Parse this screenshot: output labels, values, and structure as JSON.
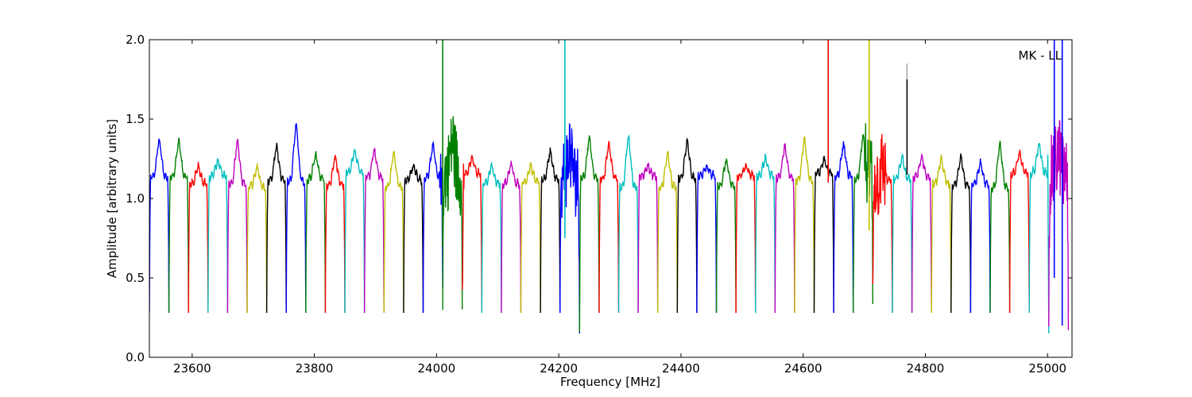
{
  "chart_data": {
    "type": "line",
    "xlabel": "Frequency [MHz]",
    "ylabel": "Amplitude [arbitrary units]",
    "annotation": "MK - LL",
    "xlim": [
      23530,
      25040
    ],
    "ylim": [
      0.0,
      2.0
    ],
    "xticks": [
      23600,
      23800,
      24000,
      24200,
      24400,
      24600,
      24800,
      25000
    ],
    "xtick_labels": [
      "23600",
      "23800",
      "24000",
      "24200",
      "24400",
      "24600",
      "24800",
      "25000"
    ],
    "yticks": [
      0.0,
      0.5,
      1.0,
      1.5,
      2.0
    ],
    "ytick_labels": [
      "0.0",
      "0.5",
      "1.0",
      "1.5",
      "2.0"
    ],
    "grid": false,
    "legend": "none",
    "colors": [
      "#0000ff",
      "#008000",
      "#ff0000",
      "#00bfbf",
      "#bf00bf",
      "#bfbf00",
      "#000000"
    ],
    "channel_width_mhz": 32,
    "channel_start_mhz": 23530,
    "channel_peaks": [
      1.36,
      1.35,
      1.2,
      1.23,
      1.35,
      1.19,
      1.32,
      1.45,
      1.27,
      1.25,
      1.29,
      1.3,
      1.28,
      1.2,
      1.32,
      1.35,
      1.25,
      1.2,
      1.21,
      1.2,
      1.29,
      1.3,
      1.37,
      1.33,
      1.38,
      1.2,
      1.28,
      1.35,
      1.2,
      1.23,
      1.2,
      1.25,
      1.32,
      1.36,
      1.24,
      1.33,
      1.38,
      1.2,
      1.25,
      1.25,
      1.24,
      1.25,
      1.22,
      1.33,
      1.28,
      1.33,
      1.3
    ],
    "spikes": [
      {
        "x": 24010,
        "y_from": 0.7,
        "y_to": 2.0,
        "color": "#008000"
      },
      {
        "x": 24210,
        "y_from": 0.75,
        "y_to": 2.0,
        "color": "#00bfbf"
      },
      {
        "x": 24641,
        "y_from": 1.1,
        "y_to": 2.0,
        "color": "#ff0000"
      },
      {
        "x": 24708,
        "y_from": 0.8,
        "y_to": 2.0,
        "color": "#bfbf00"
      },
      {
        "x": 24770,
        "y_from": 1.15,
        "y_to": 1.75,
        "color": "#000000"
      },
      {
        "x": 24770,
        "y_from": 1.75,
        "y_to": 1.85,
        "color": "#aaaaaa"
      },
      {
        "x": 25011,
        "y_from": 0.5,
        "y_to": 2.0,
        "color": "#0000ff"
      },
      {
        "x": 25024,
        "y_from": 0.2,
        "y_to": 2.0,
        "color": "#0000ff"
      }
    ]
  }
}
